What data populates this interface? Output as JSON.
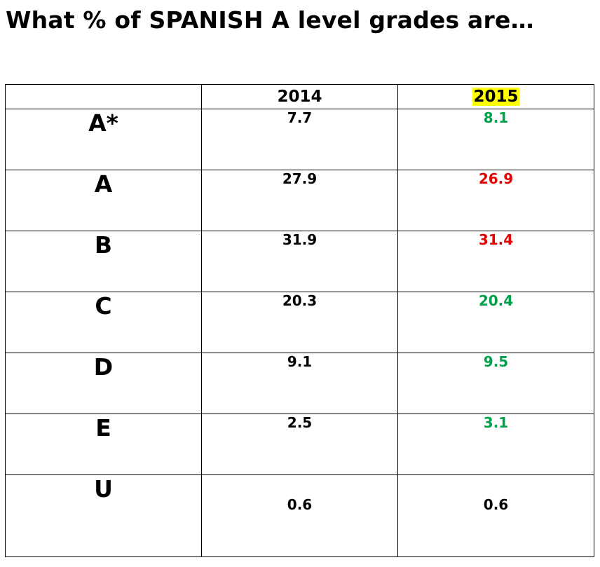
{
  "title": "What % of SPANISH A level grades are…",
  "colors": {
    "increase": "#00a04a",
    "decrease": "#e60000",
    "unchanged": "#000000",
    "header_highlight": "#ffff00"
  },
  "table": {
    "columns": [
      "",
      "2014",
      "2015"
    ],
    "rows": [
      {
        "grade": "A*",
        "y2014": "7.7",
        "y2015": "8.1",
        "trend": "up"
      },
      {
        "grade": "A",
        "y2014": "27.9",
        "y2015": "26.9",
        "trend": "down"
      },
      {
        "grade": "B",
        "y2014": "31.9",
        "y2015": "31.4",
        "trend": "down"
      },
      {
        "grade": "C",
        "y2014": "20.3",
        "y2015": "20.4",
        "trend": "up"
      },
      {
        "grade": "D",
        "y2014": "9.1",
        "y2015": "9.5",
        "trend": "up"
      },
      {
        "grade": "E",
        "y2014": "2.5",
        "y2015": "3.1",
        "trend": "up"
      },
      {
        "grade": "U",
        "y2014": "0.6",
        "y2015": "0.6",
        "trend": "same"
      }
    ]
  }
}
